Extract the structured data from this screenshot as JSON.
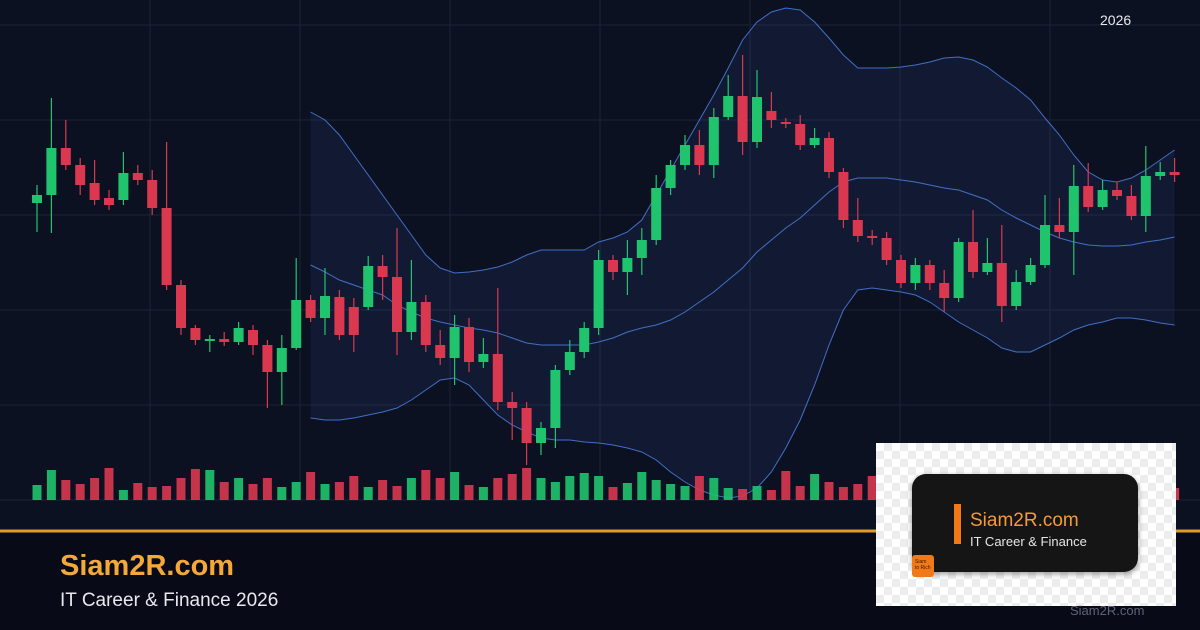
{
  "corner_label": "2026",
  "brand": "Siam2R.com",
  "tagline": "IT Career & Finance 2026",
  "card": {
    "title": "Siam2R.com",
    "subtitle": "IT Career & Finance",
    "logo_lines": [
      "Siam",
      "to Rich"
    ]
  },
  "watermark": "Siam2R.com",
  "chart_data": {
    "type": "candlestick",
    "up_color": "#1fc46d",
    "down_color": "#d9384f",
    "band_color": "#4a7fe0",
    "ylim": [
      0,
      500
    ],
    "y2lim": [
      0,
      500
    ],
    "open": [
      297,
      305,
      352,
      335,
      317,
      302,
      300,
      327,
      320,
      292,
      215,
      172,
      159,
      161,
      158,
      170,
      155,
      128,
      152,
      200,
      182,
      203,
      193,
      193,
      234,
      223,
      168,
      198,
      155,
      142,
      173,
      138,
      146,
      98,
      92,
      57,
      72,
      130,
      148,
      172,
      240,
      228,
      242,
      260,
      312,
      335,
      355,
      335,
      383,
      404,
      358,
      389,
      378,
      376,
      355,
      362,
      328,
      280,
      264,
      262,
      240,
      217,
      235,
      217,
      202,
      258,
      228,
      237,
      194,
      218,
      235,
      275,
      268,
      314,
      293,
      310,
      304,
      284,
      324,
      328
    ],
    "high": [
      315,
      402,
      380,
      342,
      340,
      310,
      348,
      335,
      330,
      358,
      220,
      175,
      165,
      168,
      178,
      175,
      160,
      165,
      242,
      205,
      232,
      210,
      202,
      244,
      245,
      272,
      240,
      205,
      170,
      185,
      182,
      162,
      212,
      108,
      98,
      78,
      135,
      160,
      178,
      250,
      245,
      260,
      272,
      325,
      340,
      365,
      370,
      392,
      425,
      445,
      430,
      408,
      382,
      385,
      372,
      368,
      332,
      302,
      270,
      268,
      245,
      242,
      240,
      230,
      262,
      290,
      262,
      275,
      230,
      242,
      305,
      302,
      335,
      337,
      320,
      318,
      315,
      354,
      338,
      342
    ],
    "low": [
      268,
      267,
      330,
      305,
      295,
      290,
      295,
      315,
      285,
      210,
      165,
      155,
      148,
      154,
      155,
      145,
      92,
      95,
      150,
      178,
      165,
      160,
      148,
      190,
      200,
      145,
      160,
      148,
      135,
      115,
      128,
      132,
      90,
      60,
      35,
      45,
      52,
      125,
      142,
      165,
      220,
      205,
      225,
      255,
      305,
      330,
      325,
      322,
      380,
      345,
      352,
      372,
      372,
      350,
      352,
      322,
      272,
      258,
      255,
      235,
      212,
      210,
      210,
      188,
      198,
      222,
      225,
      178,
      190,
      215,
      232,
      262,
      225,
      288,
      290,
      300,
      280,
      268,
      320,
      318
    ],
    "close": [
      305,
      352,
      335,
      315,
      300,
      295,
      327,
      320,
      292,
      215,
      172,
      160,
      161,
      158,
      172,
      155,
      128,
      152,
      200,
      182,
      204,
      165,
      165,
      234,
      223,
      168,
      198,
      155,
      142,
      173,
      138,
      146,
      98,
      92,
      57,
      72,
      130,
      148,
      172,
      240,
      228,
      242,
      260,
      312,
      335,
      355,
      335,
      383,
      404,
      358,
      403,
      380,
      376,
      355,
      362,
      328,
      280,
      264,
      262,
      240,
      217,
      235,
      217,
      202,
      258,
      228,
      237,
      194,
      218,
      235,
      275,
      268,
      314,
      293,
      310,
      304,
      284,
      324,
      328,
      325
    ],
    "volume": {
      "axis": "y2",
      "values": [
        15,
        30,
        20,
        16,
        22,
        32,
        10,
        17,
        13,
        14,
        22,
        31,
        30,
        18,
        22,
        16,
        22,
        13,
        18,
        28,
        16,
        18,
        24,
        13,
        20,
        14,
        22,
        30,
        22,
        28,
        15,
        13,
        22,
        26,
        32,
        22,
        18,
        24,
        27,
        24,
        13,
        17,
        28,
        20,
        16,
        14,
        24,
        22,
        12,
        11,
        14,
        10,
        29,
        14,
        26,
        18,
        13,
        16,
        24,
        15,
        20,
        18,
        24,
        12,
        22,
        15,
        20,
        18,
        25,
        22,
        14,
        16,
        22,
        18,
        20,
        15,
        13,
        24,
        18,
        12
      ]
    },
    "bands": {
      "upper": [
        null,
        null,
        null,
        null,
        null,
        null,
        null,
        null,
        null,
        null,
        null,
        null,
        null,
        null,
        null,
        null,
        null,
        null,
        null,
        388,
        380,
        365,
        345,
        325,
        305,
        285,
        265,
        245,
        232,
        227,
        228,
        230,
        233,
        238,
        245,
        250,
        250,
        250,
        250,
        258,
        262,
        268,
        280,
        305,
        330,
        355,
        380,
        405,
        432,
        460,
        478,
        488,
        492,
        490,
        478,
        462,
        445,
        432,
        432,
        432,
        433,
        435,
        438,
        442,
        443,
        440,
        433,
        422,
        412,
        400,
        382,
        365,
        345,
        328,
        320,
        318,
        322,
        330,
        340,
        350
      ],
      "middle": [
        null,
        null,
        null,
        null,
        null,
        null,
        null,
        null,
        null,
        null,
        null,
        null,
        null,
        null,
        null,
        null,
        null,
        null,
        null,
        235,
        228,
        220,
        215,
        210,
        205,
        195,
        188,
        182,
        178,
        175,
        172,
        170,
        167,
        162,
        157,
        155,
        155,
        155,
        155,
        158,
        162,
        168,
        172,
        175,
        180,
        188,
        198,
        208,
        220,
        232,
        248,
        260,
        272,
        282,
        295,
        308,
        318,
        322,
        322,
        322,
        320,
        318,
        315,
        312,
        310,
        305,
        300,
        290,
        282,
        275,
        268,
        262,
        258,
        255,
        254,
        254,
        255,
        258,
        260,
        263
      ],
      "lower": [
        null,
        null,
        null,
        null,
        null,
        null,
        null,
        null,
        null,
        null,
        null,
        null,
        null,
        null,
        null,
        null,
        null,
        null,
        null,
        82,
        80,
        80,
        82,
        85,
        88,
        92,
        100,
        110,
        120,
        122,
        115,
        100,
        85,
        75,
        68,
        62,
        60,
        60,
        58,
        57,
        55,
        52,
        48,
        40,
        28,
        18,
        10,
        5,
        2,
        4,
        12,
        28,
        52,
        80,
        115,
        155,
        190,
        210,
        212,
        210,
        208,
        205,
        198,
        188,
        178,
        170,
        162,
        152,
        148,
        148,
        155,
        162,
        170,
        175,
        178,
        182,
        182,
        180,
        177,
        175
      ]
    }
  }
}
